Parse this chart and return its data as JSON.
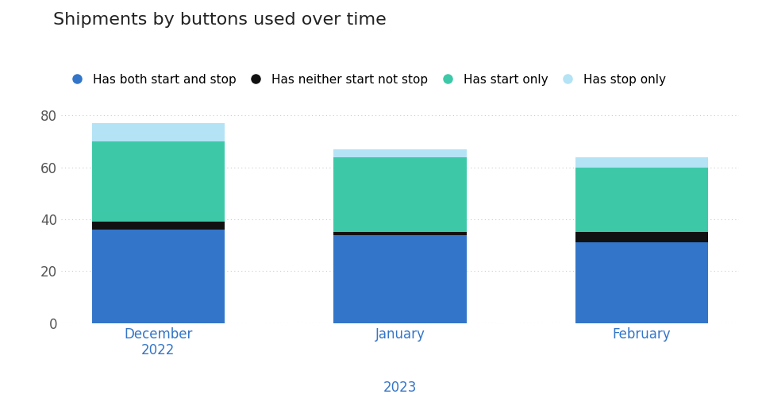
{
  "title": "Shipments by buttons used over time",
  "categories": [
    "December\n2022",
    "January",
    "February"
  ],
  "series": {
    "Has both start and stop": {
      "values": [
        36,
        34,
        31
      ],
      "color": "#3375C8"
    },
    "Has neither start not stop": {
      "values": [
        3,
        1,
        4
      ],
      "color": "#111111"
    },
    "Has start only": {
      "values": [
        31,
        29,
        25
      ],
      "color": "#3DC9A8"
    },
    "Has stop only": {
      "values": [
        7,
        3,
        4
      ],
      "color": "#B3E3F5"
    }
  },
  "ylim": [
    0,
    85
  ],
  "yticks": [
    0,
    20,
    40,
    60,
    80
  ],
  "background_color": "#ffffff",
  "bar_width": 0.55,
  "bar_positions": [
    0.0,
    1.0,
    2.0
  ],
  "title_fontsize": 16,
  "legend_fontsize": 11,
  "tick_fontsize": 12,
  "grid_color": "#CCCCCC",
  "tick_label_color": "#3375C8",
  "ytick_label_color": "#555555"
}
